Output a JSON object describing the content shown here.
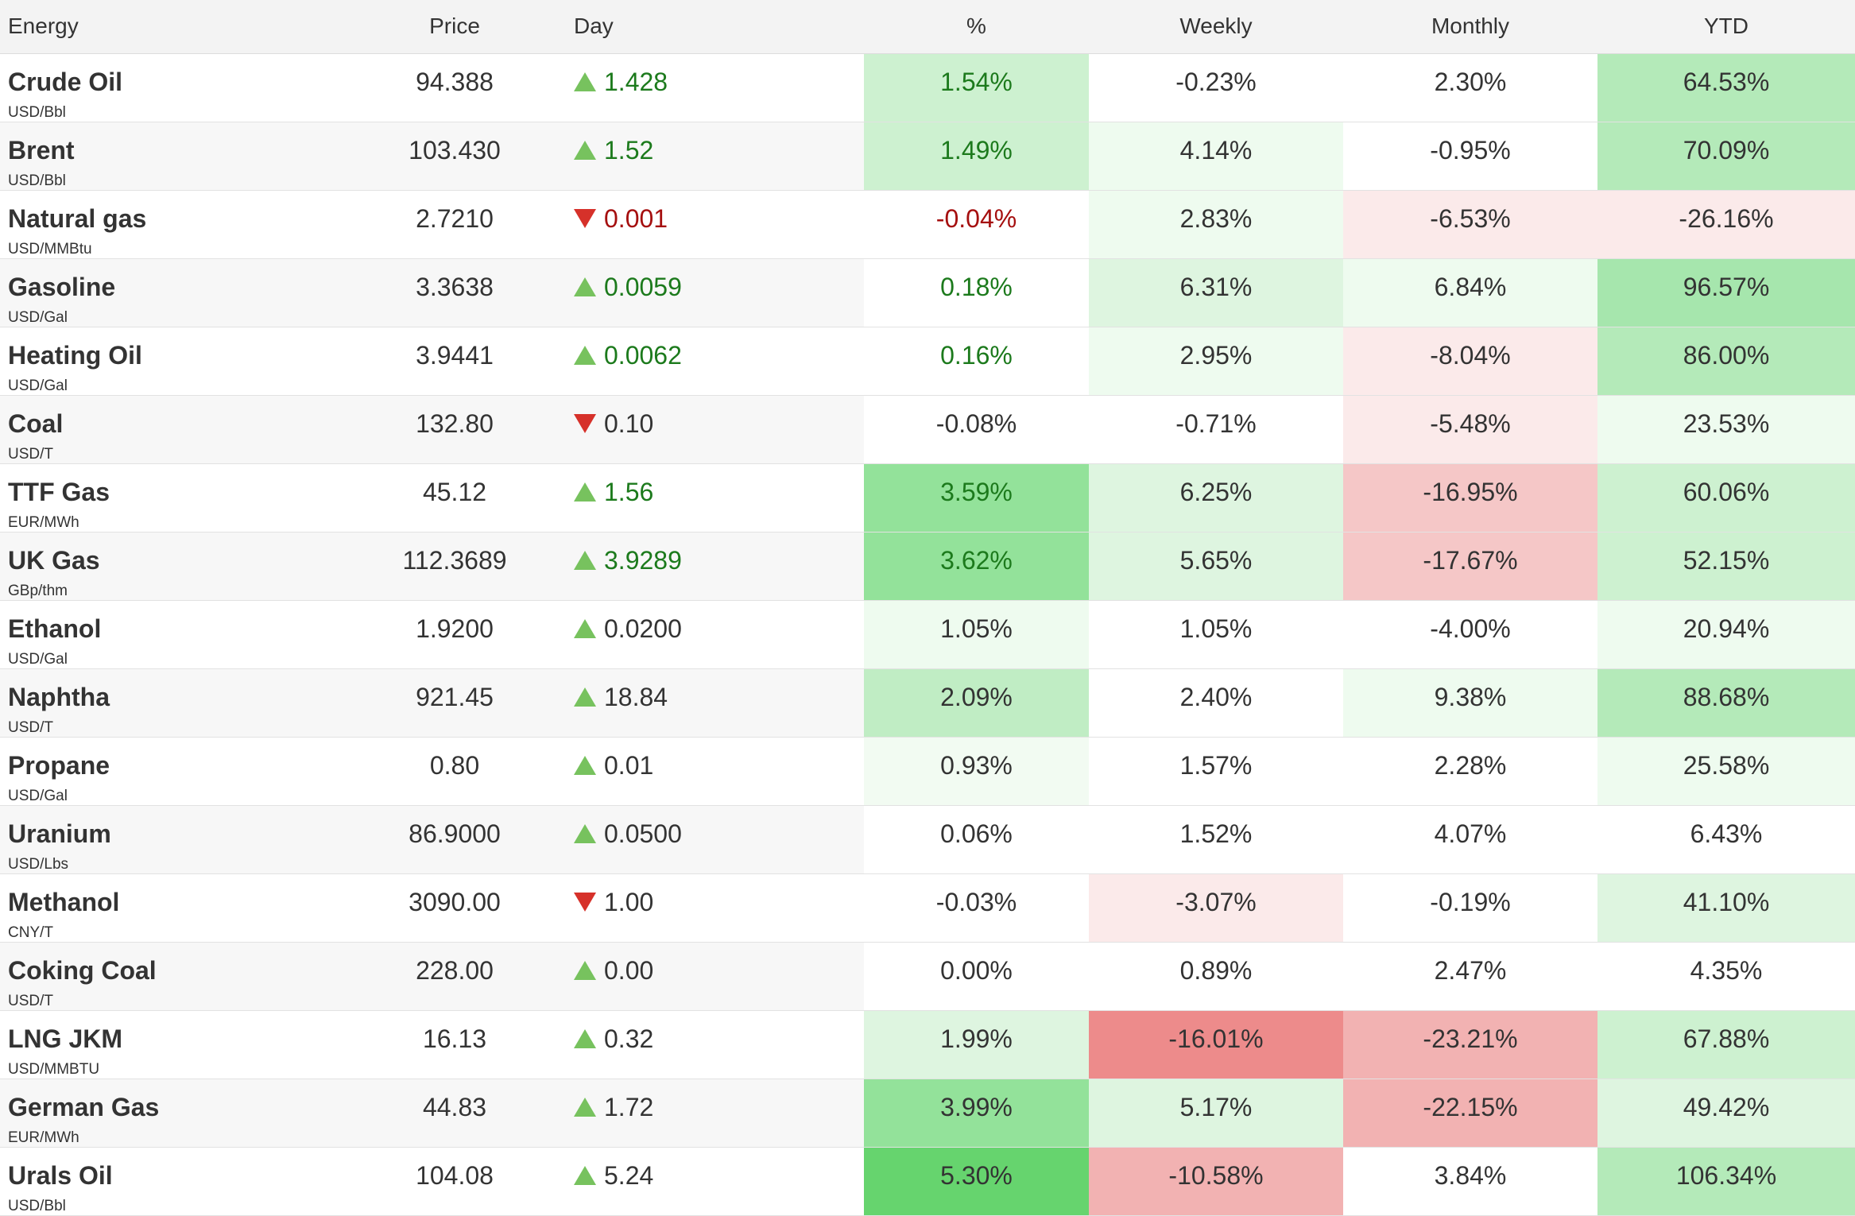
{
  "headers": {
    "name": "Energy",
    "price": "Price",
    "day": "Day",
    "pct": "%",
    "weekly": "Weekly",
    "monthly": "Monthly",
    "ytd": "YTD"
  },
  "colors": {
    "up_text": "#1c7a1c",
    "down_text": "#a50f0f",
    "neutral_text": "#333333",
    "up_arrow": "#77c25e",
    "down_arrow": "#d6312a",
    "green_1": "#eefbef",
    "green_2": "#def5e0",
    "green_3": "#cdf1d0",
    "green_4": "#b4eab9",
    "green_5": "#93e29a",
    "green_6": "#66d46e",
    "red_1": "#fbeaea",
    "red_2": "#f5c7c7",
    "red_3": "#f2b2b2",
    "red_4": "#ed8b8b"
  },
  "rows": [
    {
      "name": "Crude Oil",
      "unit": "USD/Bbl",
      "price": "94.388",
      "dir": "up",
      "day": "1.428",
      "pct": "1.54%",
      "pct_tone": "up",
      "pct_bg": "#cdf1d0",
      "weekly": "-0.23%",
      "weekly_bg": "#ffffff",
      "monthly": "2.30%",
      "monthly_bg": "#ffffff",
      "ytd": "64.53%",
      "ytd_bg": "#b4eab9"
    },
    {
      "name": "Brent",
      "unit": "USD/Bbl",
      "price": "103.430",
      "dir": "up",
      "day": "1.52",
      "pct": "1.49%",
      "pct_tone": "up",
      "pct_bg": "#cdf1d0",
      "weekly": "4.14%",
      "weekly_bg": "#eefbef",
      "monthly": "-0.95%",
      "monthly_bg": "#ffffff",
      "ytd": "70.09%",
      "ytd_bg": "#b4eab9"
    },
    {
      "name": "Natural gas",
      "unit": "USD/MMBtu",
      "price": "2.7210",
      "dir": "down",
      "day": "0.001",
      "pct": "-0.04%",
      "pct_tone": "down",
      "pct_bg": "#ffffff",
      "weekly": "2.83%",
      "weekly_bg": "#eefbef",
      "monthly": "-6.53%",
      "monthly_bg": "#fbeaea",
      "ytd": "-26.16%",
      "ytd_bg": "#fbeaea"
    },
    {
      "name": "Gasoline",
      "unit": "USD/Gal",
      "price": "3.3638",
      "dir": "up",
      "day": "0.0059",
      "pct": "0.18%",
      "pct_tone": "up",
      "pct_bg": "#ffffff",
      "weekly": "6.31%",
      "weekly_bg": "#def5e0",
      "monthly": "6.84%",
      "monthly_bg": "#eefbef",
      "ytd": "96.57%",
      "ytd_bg": "#a6e6ad"
    },
    {
      "name": "Heating Oil",
      "unit": "USD/Gal",
      "price": "3.9441",
      "dir": "up",
      "day": "0.0062",
      "pct": "0.16%",
      "pct_tone": "up",
      "pct_bg": "#ffffff",
      "weekly": "2.95%",
      "weekly_bg": "#eefbef",
      "monthly": "-8.04%",
      "monthly_bg": "#fbeaea",
      "ytd": "86.00%",
      "ytd_bg": "#b4eab9"
    },
    {
      "name": "Coal",
      "unit": "USD/T",
      "price": "132.80",
      "dir": "down",
      "day": "0.10",
      "pct": "-0.08%",
      "pct_tone": "neutral",
      "pct_bg": "#ffffff",
      "weekly": "-0.71%",
      "weekly_bg": "#ffffff",
      "monthly": "-5.48%",
      "monthly_bg": "#fbeaea",
      "ytd": "23.53%",
      "ytd_bg": "#eefbef"
    },
    {
      "name": "TTF Gas",
      "unit": "EUR/MWh",
      "price": "45.12",
      "dir": "up",
      "day": "1.56",
      "pct": "3.59%",
      "pct_tone": "up",
      "pct_bg": "#93e29a",
      "weekly": "6.25%",
      "weekly_bg": "#def5e0",
      "monthly": "-16.95%",
      "monthly_bg": "#f5c7c7",
      "ytd": "60.06%",
      "ytd_bg": "#cdf1d0"
    },
    {
      "name": "UK Gas",
      "unit": "GBp/thm",
      "price": "112.3689",
      "dir": "up",
      "day": "3.9289",
      "pct": "3.62%",
      "pct_tone": "up",
      "pct_bg": "#93e29a",
      "weekly": "5.65%",
      "weekly_bg": "#def5e0",
      "monthly": "-17.67%",
      "monthly_bg": "#f5c7c7",
      "ytd": "52.15%",
      "ytd_bg": "#cdf1d0"
    },
    {
      "name": "Ethanol",
      "unit": "USD/Gal",
      "price": "1.9200",
      "dir": "up",
      "day": "0.0200",
      "pct": "1.05%",
      "pct_tone": "neutral",
      "pct_bg": "#eefbef",
      "weekly": "1.05%",
      "weekly_bg": "#ffffff",
      "monthly": "-4.00%",
      "monthly_bg": "#ffffff",
      "ytd": "20.94%",
      "ytd_bg": "#eefbef"
    },
    {
      "name": "Naphtha",
      "unit": "USD/T",
      "price": "921.45",
      "dir": "up",
      "day": "18.84",
      "pct": "2.09%",
      "pct_tone": "neutral",
      "pct_bg": "#c0edc4",
      "weekly": "2.40%",
      "weekly_bg": "#ffffff",
      "monthly": "9.38%",
      "monthly_bg": "#eefbef",
      "ytd": "88.68%",
      "ytd_bg": "#b4eab9"
    },
    {
      "name": "Propane",
      "unit": "USD/Gal",
      "price": "0.80",
      "dir": "up",
      "day": "0.01",
      "pct": "0.93%",
      "pct_tone": "neutral",
      "pct_bg": "#f2fbf2",
      "weekly": "1.57%",
      "weekly_bg": "#ffffff",
      "monthly": "2.28%",
      "monthly_bg": "#ffffff",
      "ytd": "25.58%",
      "ytd_bg": "#eefbef"
    },
    {
      "name": "Uranium",
      "unit": "USD/Lbs",
      "price": "86.9000",
      "dir": "up",
      "day": "0.0500",
      "pct": "0.06%",
      "pct_tone": "neutral",
      "pct_bg": "#ffffff",
      "weekly": "1.52%",
      "weekly_bg": "#ffffff",
      "monthly": "4.07%",
      "monthly_bg": "#ffffff",
      "ytd": "6.43%",
      "ytd_bg": "#ffffff"
    },
    {
      "name": "Methanol",
      "unit": "CNY/T",
      "price": "3090.00",
      "dir": "down",
      "day": "1.00",
      "pct": "-0.03%",
      "pct_tone": "neutral",
      "pct_bg": "#ffffff",
      "weekly": "-3.07%",
      "weekly_bg": "#fbeaea",
      "monthly": "-0.19%",
      "monthly_bg": "#ffffff",
      "ytd": "41.10%",
      "ytd_bg": "#def5e0"
    },
    {
      "name": "Coking Coal",
      "unit": "USD/T",
      "price": "228.00",
      "dir": "up",
      "day": "0.00",
      "pct": "0.00%",
      "pct_tone": "neutral",
      "pct_bg": "#ffffff",
      "weekly": "0.89%",
      "weekly_bg": "#ffffff",
      "monthly": "2.47%",
      "monthly_bg": "#ffffff",
      "ytd": "4.35%",
      "ytd_bg": "#ffffff"
    },
    {
      "name": "LNG JKM",
      "unit": "USD/MMBTU",
      "price": "16.13",
      "dir": "up",
      "day": "0.32",
      "pct": "1.99%",
      "pct_tone": "neutral",
      "pct_bg": "#def5e0",
      "weekly": "-16.01%",
      "weekly_bg": "#ed8b8b",
      "monthly": "-23.21%",
      "monthly_bg": "#f2b2b2",
      "ytd": "67.88%",
      "ytd_bg": "#cdf1d0"
    },
    {
      "name": "German Gas",
      "unit": "EUR/MWh",
      "price": "44.83",
      "dir": "up",
      "day": "1.72",
      "pct": "3.99%",
      "pct_tone": "neutral",
      "pct_bg": "#93e29a",
      "weekly": "5.17%",
      "weekly_bg": "#def5e0",
      "monthly": "-22.15%",
      "monthly_bg": "#f2b2b2",
      "ytd": "49.42%",
      "ytd_bg": "#def5e0"
    },
    {
      "name": "Urals Oil",
      "unit": "USD/Bbl",
      "price": "104.08",
      "dir": "up",
      "day": "5.24",
      "pct": "5.30%",
      "pct_tone": "neutral",
      "pct_bg": "#66d46e",
      "weekly": "-10.58%",
      "weekly_bg": "#f2b2b2",
      "monthly": "3.84%",
      "monthly_bg": "#ffffff",
      "ytd": "106.34%",
      "ytd_bg": "#b4eab9"
    }
  ]
}
